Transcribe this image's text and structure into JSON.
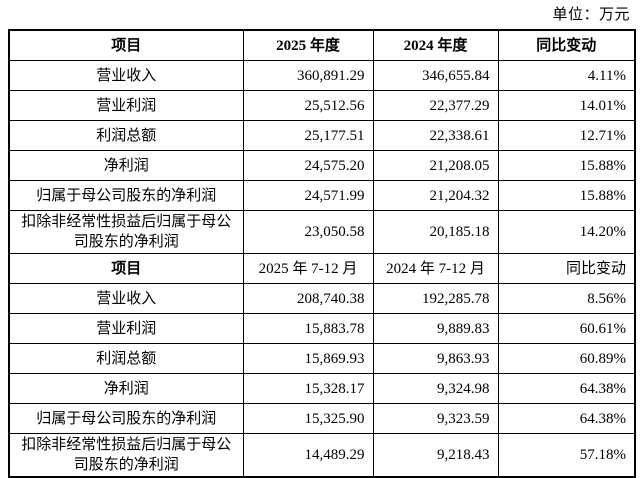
{
  "unit_label": "单位：万元",
  "colors": {
    "background": "#ffffff",
    "text": "#000000",
    "border": "#000000"
  },
  "sections": [
    {
      "headers": [
        "项目",
        "2025 年度",
        "2024 年度",
        "同比变动"
      ],
      "rows": [
        {
          "item": "营业收入",
          "current": "360,891.29",
          "prior": "346,655.84",
          "change": "4.11%"
        },
        {
          "item": "营业利润",
          "current": "25,512.56",
          "prior": "22,377.29",
          "change": "14.01%"
        },
        {
          "item": "利润总额",
          "current": "25,177.51",
          "prior": "22,338.61",
          "change": "12.71%"
        },
        {
          "item": "净利润",
          "current": "24,575.20",
          "prior": "21,208.05",
          "change": "15.88%"
        },
        {
          "item": "归属于母公司股东的净利润",
          "current": "24,571.99",
          "prior": "21,204.32",
          "change": "15.88%"
        },
        {
          "item": "扣除非经常性损益后归属于母公司股东的净利润",
          "current": "23,050.58",
          "prior": "20,185.18",
          "change": "14.20%"
        }
      ]
    },
    {
      "headers": [
        "项目",
        "2025 年 7-12 月",
        "2024 年 7-12 月",
        "同比变动"
      ],
      "rows": [
        {
          "item": "营业收入",
          "current": "208,740.38",
          "prior": "192,285.78",
          "change": "8.56%"
        },
        {
          "item": "营业利润",
          "current": "15,883.78",
          "prior": "9,889.83",
          "change": "60.61%"
        },
        {
          "item": "利润总额",
          "current": "15,869.93",
          "prior": "9,863.93",
          "change": "60.89%"
        },
        {
          "item": "净利润",
          "current": "15,328.17",
          "prior": "9,324.98",
          "change": "64.38%"
        },
        {
          "item": "归属于母公司股东的净利润",
          "current": "15,325.90",
          "prior": "9,323.59",
          "change": "64.38%"
        },
        {
          "item": "扣除非经常性损益后归属于母公司股东的净利润",
          "current": "14,489.29",
          "prior": "9,218.43",
          "change": "57.18%"
        }
      ]
    }
  ]
}
